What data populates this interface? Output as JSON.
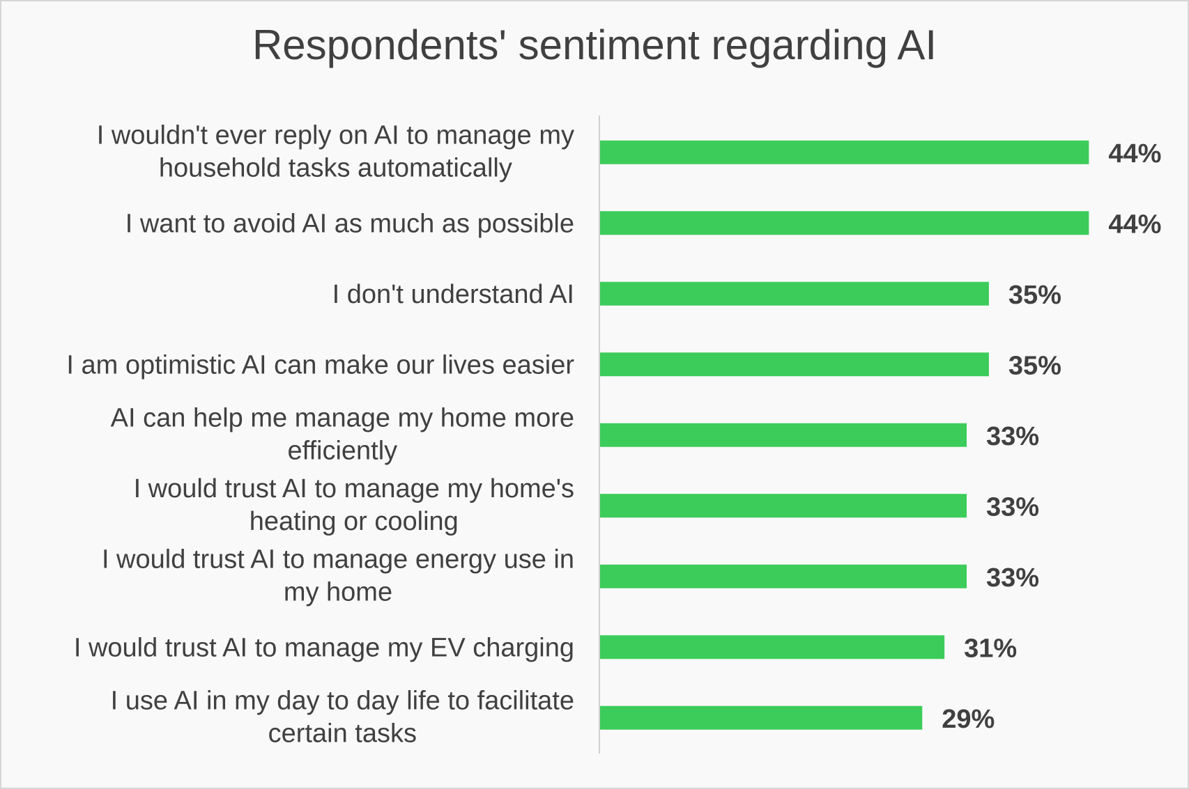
{
  "chart_data": {
    "type": "bar",
    "orientation": "horizontal",
    "title": "Respondents' sentiment regarding AI",
    "categories": [
      [
        "I wouldn't ever reply on AI to manage my",
        "household tasks automatically"
      ],
      [
        "I want to avoid AI as much as possible"
      ],
      [
        "I don't understand AI"
      ],
      [
        "I am optimistic AI can make our lives easier"
      ],
      [
        "AI can help me manage my home more",
        "efficiently"
      ],
      [
        "I would trust AI to manage my home's",
        "heating or cooling"
      ],
      [
        "I would trust AI to manage energy use in",
        "my home"
      ],
      [
        "I would trust AI to manage my EV charging"
      ],
      [
        "I use AI in my day to day life to facilitate",
        "certain tasks"
      ]
    ],
    "values": [
      44,
      44,
      35,
      35,
      33,
      33,
      33,
      31,
      29
    ],
    "value_labels": [
      "44%",
      "44%",
      "35%",
      "35%",
      "33%",
      "33%",
      "33%",
      "31%",
      "29%"
    ],
    "xlim": [
      0,
      50
    ],
    "grid": false,
    "legend": "none",
    "bar_color": "#3ccc5a"
  }
}
